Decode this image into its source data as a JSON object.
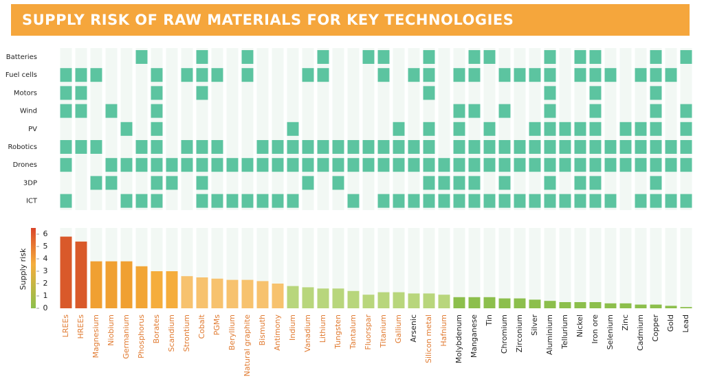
{
  "chart_data": [
    {
      "type": "heatmap",
      "title": "SUPPLY RISK OF RAW MATERIALS FOR KEY TECHNOLOGIES",
      "rows": [
        "Batteries",
        "Fuel cells",
        "Motors",
        "Wind",
        "PV",
        "Robotics",
        "Drones",
        "3DP",
        "ICT"
      ],
      "fill_color": "#5cc4a0",
      "empty_color": "#f2f8f4",
      "matrix": [
        [
          0,
          0,
          0,
          0,
          0,
          1,
          0,
          0,
          0,
          1,
          0,
          0,
          1,
          0,
          0,
          0,
          0,
          1,
          0,
          0,
          1,
          1,
          0,
          0,
          1,
          0,
          0,
          1,
          1,
          0,
          0,
          0,
          1,
          0,
          1,
          1,
          0,
          0,
          0,
          1,
          0,
          1
        ],
        [
          1,
          1,
          1,
          0,
          0,
          0,
          1,
          0,
          1,
          1,
          1,
          0,
          1,
          0,
          0,
          0,
          1,
          1,
          0,
          0,
          0,
          1,
          0,
          1,
          1,
          0,
          1,
          1,
          0,
          1,
          1,
          1,
          1,
          0,
          1,
          1,
          1,
          0,
          1,
          1,
          1,
          0
        ],
        [
          1,
          1,
          0,
          0,
          0,
          0,
          1,
          0,
          0,
          1,
          0,
          0,
          0,
          0,
          0,
          0,
          0,
          0,
          0,
          0,
          0,
          0,
          0,
          0,
          1,
          0,
          0,
          0,
          0,
          0,
          0,
          0,
          1,
          0,
          0,
          1,
          0,
          0,
          0,
          1,
          0,
          0
        ],
        [
          1,
          1,
          0,
          1,
          0,
          0,
          1,
          0,
          0,
          0,
          0,
          0,
          0,
          0,
          0,
          0,
          0,
          0,
          0,
          0,
          0,
          0,
          0,
          0,
          0,
          0,
          1,
          1,
          0,
          1,
          0,
          0,
          1,
          0,
          0,
          1,
          0,
          0,
          0,
          1,
          0,
          1
        ],
        [
          0,
          0,
          0,
          0,
          1,
          0,
          1,
          0,
          0,
          0,
          0,
          0,
          0,
          0,
          0,
          1,
          0,
          0,
          0,
          0,
          0,
          0,
          1,
          0,
          1,
          0,
          1,
          0,
          1,
          0,
          0,
          1,
          1,
          1,
          1,
          1,
          0,
          1,
          1,
          1,
          0,
          1
        ],
        [
          1,
          1,
          1,
          0,
          0,
          1,
          1,
          0,
          1,
          1,
          1,
          0,
          0,
          1,
          1,
          1,
          1,
          1,
          1,
          1,
          1,
          1,
          1,
          1,
          1,
          0,
          1,
          1,
          1,
          1,
          1,
          1,
          1,
          1,
          1,
          1,
          1,
          1,
          1,
          1,
          1,
          1
        ],
        [
          1,
          0,
          0,
          1,
          1,
          1,
          1,
          1,
          1,
          1,
          1,
          1,
          1,
          1,
          1,
          1,
          1,
          1,
          1,
          1,
          1,
          1,
          1,
          1,
          1,
          1,
          1,
          1,
          1,
          1,
          1,
          1,
          1,
          1,
          1,
          1,
          1,
          1,
          1,
          1,
          1,
          1
        ],
        [
          0,
          0,
          1,
          1,
          0,
          0,
          1,
          1,
          0,
          1,
          0,
          0,
          0,
          0,
          0,
          0,
          1,
          0,
          1,
          0,
          0,
          0,
          0,
          0,
          1,
          1,
          1,
          1,
          0,
          1,
          0,
          0,
          1,
          0,
          1,
          1,
          0,
          0,
          0,
          1,
          0,
          0
        ],
        [
          1,
          0,
          0,
          0,
          1,
          1,
          1,
          0,
          0,
          1,
          1,
          1,
          1,
          1,
          1,
          1,
          0,
          0,
          0,
          1,
          0,
          1,
          1,
          1,
          1,
          1,
          1,
          1,
          1,
          1,
          1,
          1,
          1,
          1,
          1,
          1,
          1,
          0,
          1,
          1,
          1,
          1
        ]
      ]
    },
    {
      "type": "bar",
      "ylabel": "Supply risk",
      "categories": [
        "LREEs",
        "HREEs",
        "Magnesium",
        "Niobium",
        "Germanium",
        "Phosphorus",
        "Borates",
        "Scandium",
        "Strontium",
        "Cobalt",
        "PGMs",
        "Beryllium",
        "Natural graphite",
        "Bismuth",
        "Antimony",
        "Indium",
        "Vanadium",
        "Lithium",
        "Tungsten",
        "Tantalum",
        "Fluorspar",
        "Titanium",
        "Gallium",
        "Arsenic",
        "Silicon metal",
        "Hafnium",
        "Molybdenum",
        "Manganese",
        "Tin",
        "Chromium",
        "Zirconium",
        "Silver",
        "Aluminium",
        "Tellurium",
        "Nickel",
        "Iron ore",
        "Selenium",
        "Zinc",
        "Cadmium",
        "Copper",
        "Gold",
        "Lead"
      ],
      "values": [
        5.8,
        5.4,
        3.8,
        3.8,
        3.8,
        3.4,
        3.0,
        3.0,
        2.6,
        2.5,
        2.4,
        2.3,
        2.3,
        2.2,
        2.0,
        1.8,
        1.7,
        1.6,
        1.6,
        1.4,
        1.1,
        1.3,
        1.3,
        1.2,
        1.2,
        1.1,
        0.9,
        0.9,
        0.9,
        0.8,
        0.8,
        0.7,
        0.6,
        0.5,
        0.5,
        0.5,
        0.4,
        0.4,
        0.3,
        0.3,
        0.2,
        0.1
      ],
      "colors": [
        "#d9592a",
        "#d9592a",
        "#f0a032",
        "#f0a032",
        "#f0a032",
        "#f2a535",
        "#f5ad3c",
        "#f5ad3c",
        "#f7c26e",
        "#f7c26e",
        "#f7c26e",
        "#f7c26e",
        "#f7c26e",
        "#f7c26e",
        "#f7c26e",
        "#b8d67c",
        "#b8d67c",
        "#b8d67c",
        "#b8d67c",
        "#b8d67c",
        "#b8d67c",
        "#b8d67c",
        "#b8d67c",
        "#b8d67c",
        "#b8d67c",
        "#b8d67c",
        "#8cbf4c",
        "#8cbf4c",
        "#8cbf4c",
        "#8cbf4c",
        "#8cbf4c",
        "#8cbf4c",
        "#8cbf4c",
        "#8cbf4c",
        "#8cbf4c",
        "#8cbf4c",
        "#8cbf4c",
        "#8cbf4c",
        "#8cbf4c",
        "#8cbf4c",
        "#8cbf4c",
        "#8cbf4c"
      ],
      "label_colors": [
        "#e07a30",
        "#e07a30",
        "#e07a30",
        "#e07a30",
        "#e07a30",
        "#e07a30",
        "#e07a30",
        "#e07a30",
        "#e07a30",
        "#e07a30",
        "#e07a30",
        "#e07a30",
        "#e07a30",
        "#e07a30",
        "#e07a30",
        "#e07a30",
        "#e07a30",
        "#e07a30",
        "#e07a30",
        "#e07a30",
        "#e07a30",
        "#e07a30",
        "#e07a30",
        "#222222",
        "#e07a30",
        "#e07a30",
        "#222222",
        "#222222",
        "#222222",
        "#222222",
        "#222222",
        "#222222",
        "#222222",
        "#222222",
        "#222222",
        "#222222",
        "#222222",
        "#222222",
        "#222222",
        "#222222",
        "#222222",
        "#222222"
      ],
      "ylim": [
        0,
        6.5
      ],
      "yticks": [
        0,
        1,
        2,
        3,
        4,
        5,
        6
      ]
    }
  ]
}
